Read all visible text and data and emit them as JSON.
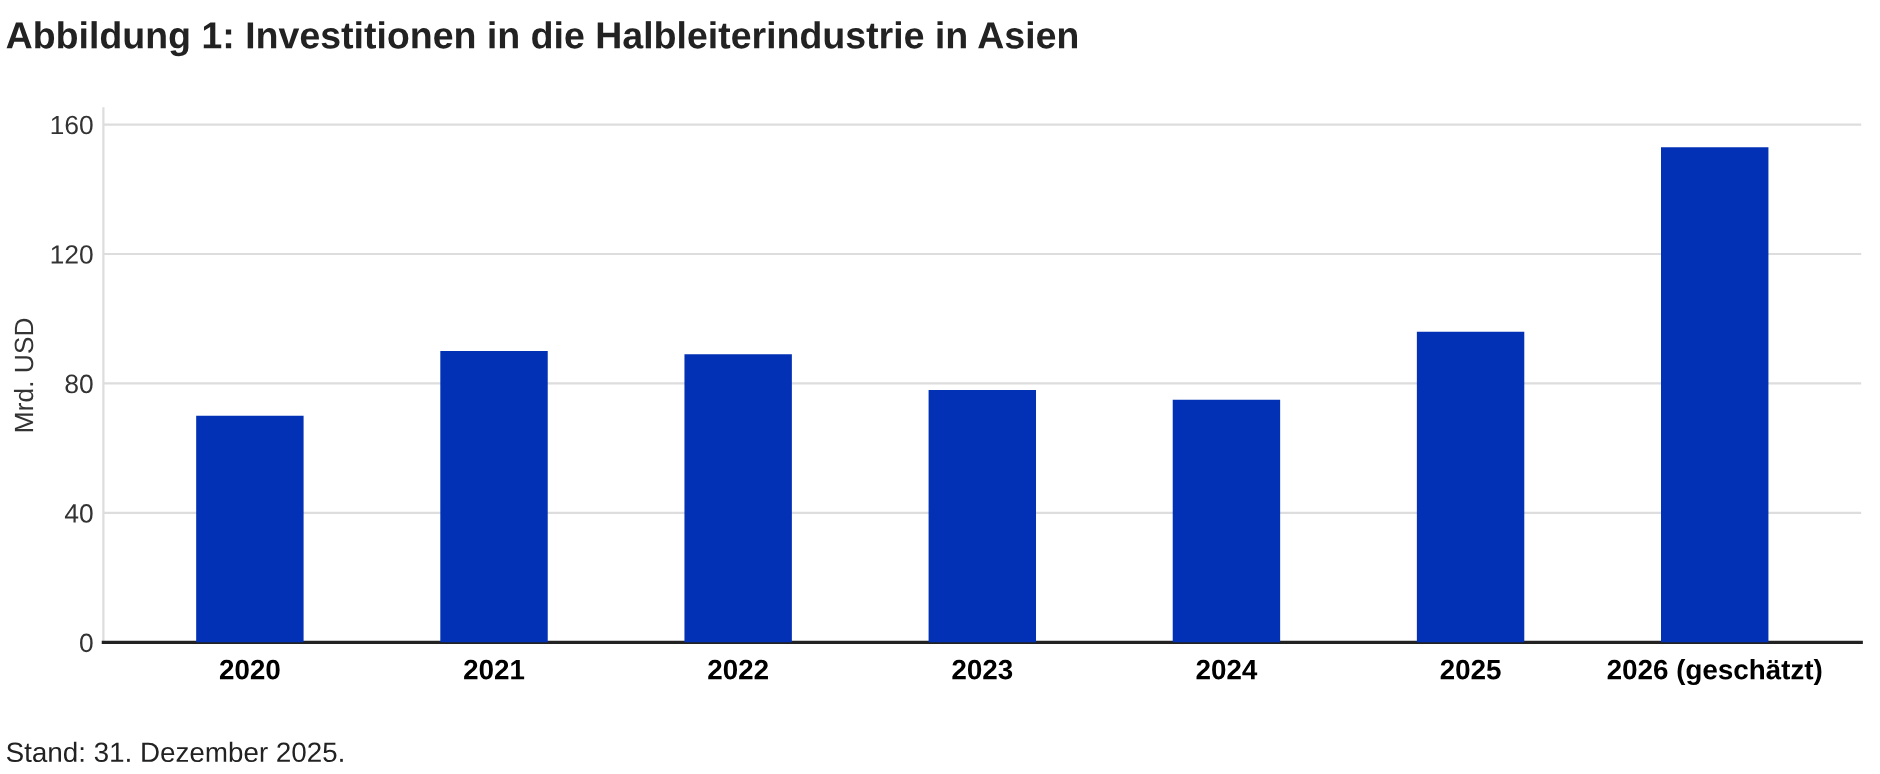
{
  "chart_data": {
    "type": "bar",
    "title": "Abbildung 1: Investitionen in die Halbleiterindustrie in Asien",
    "ylabel": "Mrd. USD",
    "categories": [
      "2020",
      "2021",
      "2022",
      "2023",
      "2024",
      "2025",
      "2026 (geschätzt)"
    ],
    "values": [
      70,
      90,
      89,
      78,
      75,
      96,
      153
    ],
    "color": "#0331b5",
    "ylim": [
      0,
      165
    ],
    "yticks": [
      0,
      40,
      80,
      120,
      160
    ],
    "grid": "y",
    "annotations": [
      "Stand: 31. Dezember 2025."
    ]
  }
}
